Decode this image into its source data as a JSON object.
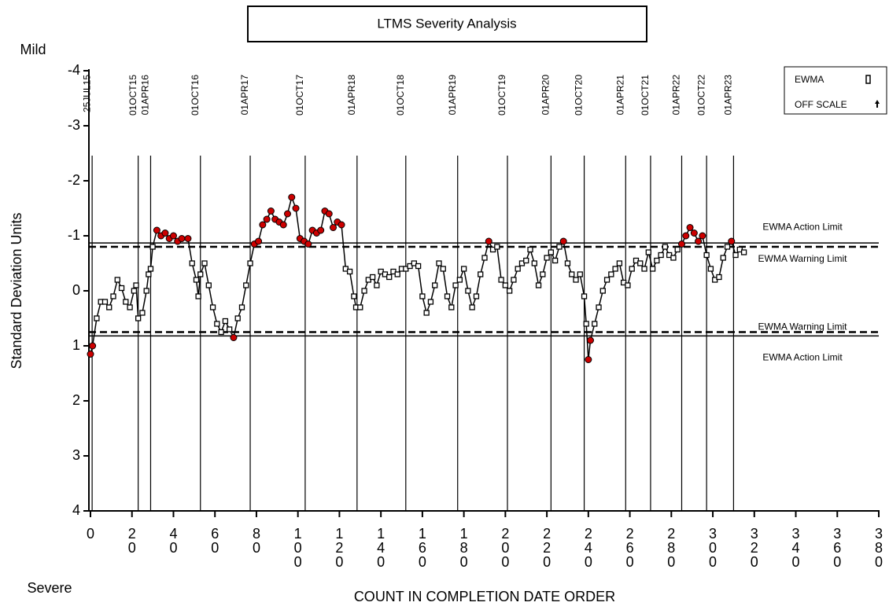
{
  "chart_data": {
    "type": "line",
    "title": "LTMS Severity Analysis",
    "top_note": "Mild",
    "bottom_note": "Severe",
    "xlabel": "COUNT IN COMPLETION DATE ORDER",
    "ylabel": "Standard Deviation Units",
    "xlim": [
      0,
      380
    ],
    "xticks": [
      0,
      20,
      40,
      60,
      80,
      100,
      120,
      140,
      160,
      180,
      200,
      220,
      240,
      260,
      280,
      300,
      320,
      340,
      360,
      380
    ],
    "ylim": [
      -4,
      4
    ],
    "yticks": [
      -4,
      -3,
      -2,
      -1,
      0,
      1,
      2,
      3,
      4
    ],
    "y_inverted": true,
    "date_lines": {
      "labels": [
        "25JUL15",
        "01OCT15",
        "01APR16",
        "01OCT16",
        "01APR17",
        "01OCT17",
        "01APR18",
        "01OCT18",
        "01APR19",
        "01OCT19",
        "01APR20",
        "01OCT20",
        "01APR21",
        "01OCT21",
        "01APR22",
        "01OCT22",
        "01APR23"
      ],
      "x": [
        0.8,
        23,
        29,
        53,
        77,
        103.5,
        128.5,
        152,
        177,
        201,
        222,
        238,
        258,
        270,
        285,
        297,
        310
      ]
    },
    "limits": [
      {
        "label": "EWMA Action Limit",
        "value": -0.87,
        "style": "solid"
      },
      {
        "label": "EWMA Warning Limit",
        "value": -0.8,
        "style": "dashed"
      },
      {
        "label": "EWMA Warning Limit",
        "value": 0.75,
        "style": "dashed"
      },
      {
        "label": "EWMA Action Limit",
        "value": 0.82,
        "style": "solid"
      }
    ],
    "legend": [
      "EWMA",
      "OFF SCALE"
    ],
    "series": [
      {
        "name": "EWMA",
        "color": "#000000",
        "flag_color": "#cc0000",
        "x": [
          0,
          1,
          3,
          5,
          7,
          9,
          11,
          13,
          15,
          17,
          19,
          21,
          22,
          23,
          25,
          27,
          28,
          29,
          30,
          32,
          34,
          36,
          38,
          40,
          42,
          44,
          47,
          49,
          51,
          52,
          53,
          55,
          57,
          59,
          61,
          63,
          65,
          67,
          69,
          71,
          73,
          75,
          77,
          79,
          81,
          83,
          85,
          87,
          89,
          91,
          93,
          95,
          97,
          99,
          101,
          103,
          105,
          107,
          109,
          111,
          113,
          115,
          117,
          119,
          121,
          123,
          125,
          127,
          128,
          130,
          132,
          134,
          136,
          138,
          140,
          142,
          144,
          146,
          148,
          150,
          152,
          154,
          156,
          158,
          160,
          162,
          164,
          166,
          168,
          170,
          172,
          174,
          176,
          178,
          180,
          182,
          184,
          186,
          188,
          190,
          192,
          194,
          196,
          198,
          200,
          202,
          204,
          206,
          208,
          210,
          212,
          214,
          216,
          218,
          220,
          222,
          224,
          226,
          228,
          230,
          232,
          234,
          236,
          238,
          239,
          240,
          241,
          243,
          245,
          247,
          249,
          251,
          253,
          255,
          257,
          259,
          261,
          263,
          265,
          267,
          269,
          271,
          273,
          275,
          277,
          279,
          281,
          283,
          285,
          287,
          289,
          291,
          293,
          295,
          297,
          299,
          301,
          303,
          305,
          307,
          309,
          311,
          313,
          315
        ],
        "values": [
          1.15,
          1.0,
          0.5,
          0.2,
          0.2,
          0.3,
          0.1,
          -0.2,
          -0.05,
          0.2,
          0.3,
          0.0,
          -0.1,
          0.5,
          0.4,
          0.0,
          -0.3,
          -0.4,
          -0.8,
          -1.1,
          -1.0,
          -1.05,
          -0.95,
          -1.0,
          -0.9,
          -0.95,
          -0.95,
          -0.5,
          -0.2,
          0.1,
          -0.3,
          -0.5,
          -0.1,
          0.3,
          0.6,
          0.75,
          0.55,
          0.7,
          0.85,
          0.5,
          0.3,
          -0.1,
          -0.5,
          -0.85,
          -0.9,
          -1.2,
          -1.3,
          -1.45,
          -1.3,
          -1.25,
          -1.2,
          -1.4,
          -1.7,
          -1.5,
          -0.95,
          -0.9,
          -0.85,
          -1.1,
          -1.05,
          -1.1,
          -1.45,
          -1.4,
          -1.15,
          -1.25,
          -1.2,
          -0.4,
          -0.35,
          0.1,
          0.3,
          0.3,
          0.0,
          -0.2,
          -0.25,
          -0.1,
          -0.35,
          -0.3,
          -0.25,
          -0.35,
          -0.3,
          -0.4,
          -0.4,
          -0.45,
          -0.5,
          -0.45,
          0.1,
          0.4,
          0.2,
          -0.1,
          -0.5,
          -0.4,
          0.1,
          0.3,
          -0.1,
          -0.2,
          -0.4,
          0.0,
          0.3,
          0.1,
          -0.3,
          -0.6,
          -0.9,
          -0.75,
          -0.8,
          -0.2,
          -0.1,
          0.0,
          -0.2,
          -0.4,
          -0.5,
          -0.55,
          -0.75,
          -0.5,
          -0.1,
          -0.3,
          -0.6,
          -0.7,
          -0.55,
          -0.8,
          -0.9,
          -0.5,
          -0.3,
          -0.2,
          -0.3,
          0.1,
          0.6,
          1.25,
          0.9,
          0.6,
          0.3,
          0.0,
          -0.2,
          -0.3,
          -0.4,
          -0.5,
          -0.15,
          -0.1,
          -0.4,
          -0.55,
          -0.5,
          -0.4,
          -0.7,
          -0.4,
          -0.55,
          -0.65,
          -0.8,
          -0.65,
          -0.6,
          -0.75,
          -0.85,
          -1.0,
          -1.15,
          -1.05,
          -0.9,
          -1.0,
          -0.65,
          -0.4,
          -0.2,
          -0.25,
          -0.6,
          -0.8,
          -0.9,
          -0.65,
          -0.75,
          -0.7
        ]
      }
    ]
  }
}
